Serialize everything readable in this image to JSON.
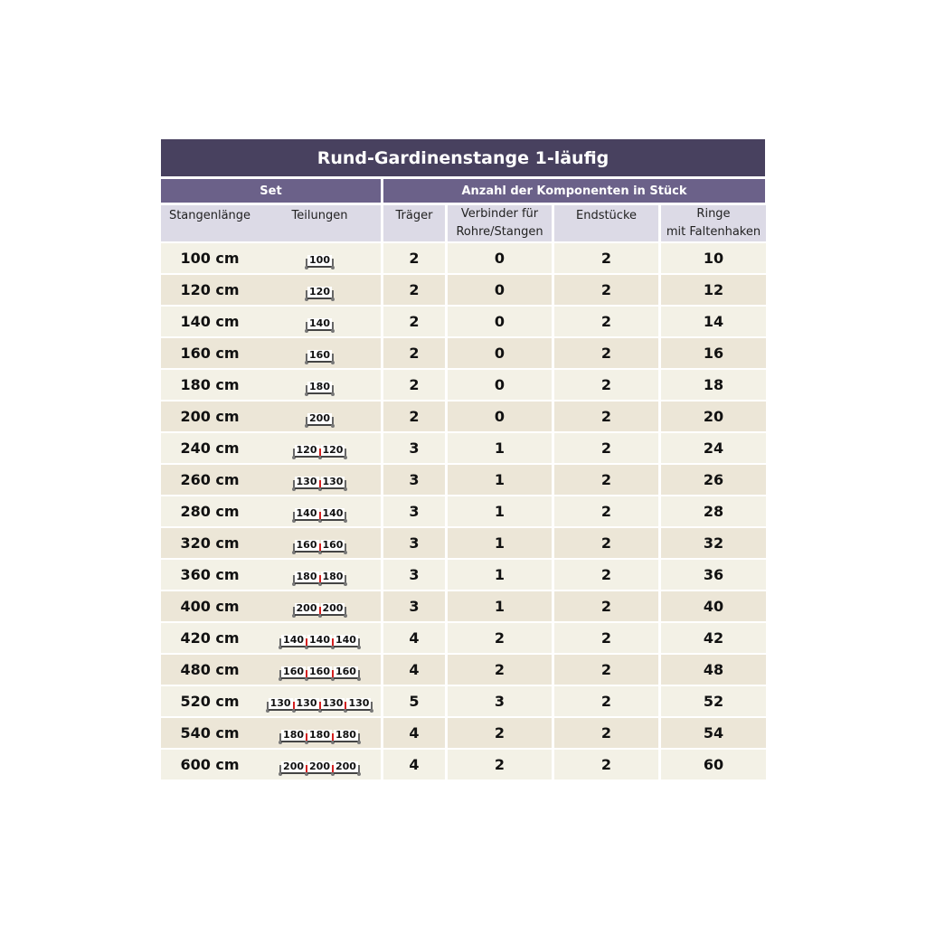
{
  "title": "Rund-Gardinenstange 1-läufig",
  "groups": {
    "set": "Set",
    "components": "Anzahl der Komponenten in Stück"
  },
  "columns": {
    "length": "Stangenlänge",
    "divisions": "Teilungen",
    "brackets": "Träger",
    "connectors_1": "Verbinder für",
    "connectors_2": "Rohre/Stangen",
    "end_pieces": "Endstücke",
    "rings_1": "Ringe",
    "rings_2": "mit Faltenhaken"
  },
  "rows": [
    {
      "length": "100 cm",
      "divisions": [
        "100"
      ],
      "brackets": "2",
      "connectors": "0",
      "end_pieces": "2",
      "rings": "10"
    },
    {
      "length": "120 cm",
      "divisions": [
        "120"
      ],
      "brackets": "2",
      "connectors": "0",
      "end_pieces": "2",
      "rings": "12"
    },
    {
      "length": "140 cm",
      "divisions": [
        "140"
      ],
      "brackets": "2",
      "connectors": "0",
      "end_pieces": "2",
      "rings": "14"
    },
    {
      "length": "160 cm",
      "divisions": [
        "160"
      ],
      "brackets": "2",
      "connectors": "0",
      "end_pieces": "2",
      "rings": "16"
    },
    {
      "length": "180 cm",
      "divisions": [
        "180"
      ],
      "brackets": "2",
      "connectors": "0",
      "end_pieces": "2",
      "rings": "18"
    },
    {
      "length": "200 cm",
      "divisions": [
        "200"
      ],
      "brackets": "2",
      "connectors": "0",
      "end_pieces": "2",
      "rings": "20"
    },
    {
      "length": "240 cm",
      "divisions": [
        "120",
        "120"
      ],
      "brackets": "3",
      "connectors": "1",
      "end_pieces": "2",
      "rings": "24"
    },
    {
      "length": "260 cm",
      "divisions": [
        "130",
        "130"
      ],
      "brackets": "3",
      "connectors": "1",
      "end_pieces": "2",
      "rings": "26"
    },
    {
      "length": "280 cm",
      "divisions": [
        "140",
        "140"
      ],
      "brackets": "3",
      "connectors": "1",
      "end_pieces": "2",
      "rings": "28"
    },
    {
      "length": "320 cm",
      "divisions": [
        "160",
        "160"
      ],
      "brackets": "3",
      "connectors": "1",
      "end_pieces": "2",
      "rings": "32"
    },
    {
      "length": "360 cm",
      "divisions": [
        "180",
        "180"
      ],
      "brackets": "3",
      "connectors": "1",
      "end_pieces": "2",
      "rings": "36"
    },
    {
      "length": "400 cm",
      "divisions": [
        "200",
        "200"
      ],
      "brackets": "3",
      "connectors": "1",
      "end_pieces": "2",
      "rings": "40"
    },
    {
      "length": "420 cm",
      "divisions": [
        "140",
        "140",
        "140"
      ],
      "brackets": "4",
      "connectors": "2",
      "end_pieces": "2",
      "rings": "42"
    },
    {
      "length": "480 cm",
      "divisions": [
        "160",
        "160",
        "160"
      ],
      "brackets": "4",
      "connectors": "2",
      "end_pieces": "2",
      "rings": "48"
    },
    {
      "length": "520 cm",
      "divisions": [
        "130",
        "130",
        "130",
        "130"
      ],
      "brackets": "5",
      "connectors": "3",
      "end_pieces": "2",
      "rings": "52"
    },
    {
      "length": "540 cm",
      "divisions": [
        "180",
        "180",
        "180"
      ],
      "brackets": "4",
      "connectors": "2",
      "end_pieces": "2",
      "rings": "54"
    },
    {
      "length": "600 cm",
      "divisions": [
        "200",
        "200",
        "200"
      ],
      "brackets": "4",
      "connectors": "2",
      "end_pieces": "2",
      "rings": "60"
    }
  ],
  "colors": {
    "title_bg": "#48415f",
    "group_bg": "#6b6189",
    "subheader_bg": "#dcdae6",
    "row_light": "#f3f1e6",
    "row_dark": "#ece6d7",
    "connector_mark": "#d42020"
  }
}
